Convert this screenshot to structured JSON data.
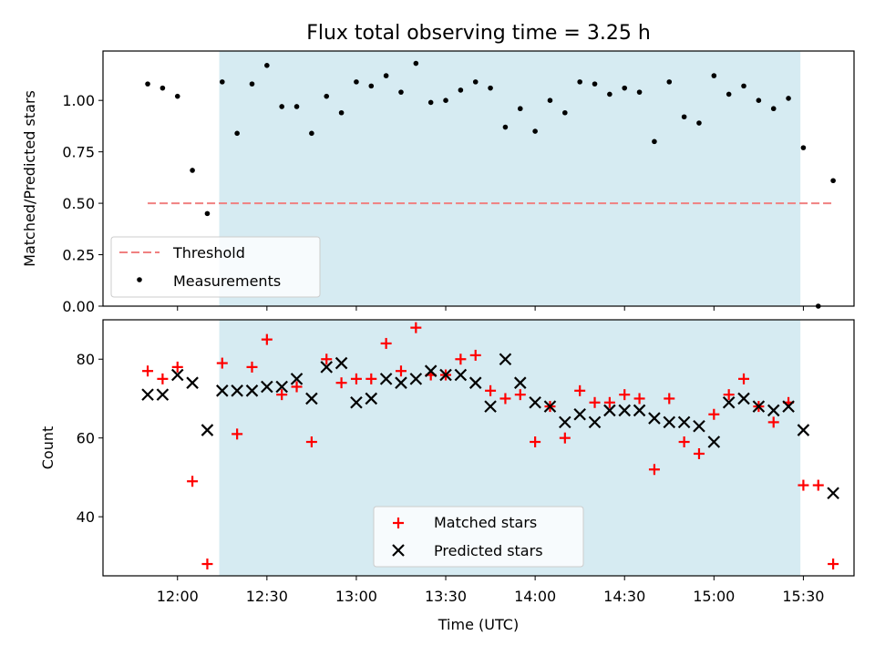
{
  "title": "Flux total observing time = 3.25 h",
  "colors": {
    "shade": "#add8e6",
    "threshold": "#f08080",
    "measurement": "#000000",
    "matched": "#ff0000",
    "predicted": "#000000"
  },
  "chart_data": [
    {
      "type": "scatter",
      "ylabel": "Matched/Predicted stars",
      "ylim": [
        0,
        1.24
      ],
      "yticks": [
        0.0,
        0.25,
        0.5,
        0.75,
        1.0
      ],
      "ytick_labels": [
        "0.00",
        "0.25",
        "0.50",
        "0.75",
        "1.00"
      ],
      "shaded_span": {
        "start": "12:14",
        "end": "15:29"
      },
      "legend_placement": "lower-left",
      "threshold": {
        "name": "Threshold",
        "value": 0.5,
        "x_range": [
          "11:50",
          "15:40"
        ]
      },
      "series": [
        {
          "name": "Measurements",
          "x": [
            "11:50",
            "11:55",
            "12:00",
            "12:05",
            "12:10",
            "12:15",
            "12:20",
            "12:25",
            "12:30",
            "12:35",
            "12:40",
            "12:45",
            "12:50",
            "12:55",
            "13:00",
            "13:05",
            "13:10",
            "13:15",
            "13:20",
            "13:25",
            "13:30",
            "13:35",
            "13:40",
            "13:45",
            "13:50",
            "13:55",
            "14:00",
            "14:05",
            "14:10",
            "14:15",
            "14:20",
            "14:25",
            "14:30",
            "14:35",
            "14:40",
            "14:45",
            "14:50",
            "14:55",
            "15:00",
            "15:05",
            "15:10",
            "15:15",
            "15:20",
            "15:25",
            "15:30",
            "15:35",
            "15:40"
          ],
          "y": [
            1.08,
            1.06,
            1.02,
            0.66,
            0.45,
            1.09,
            0.84,
            1.08,
            1.17,
            0.97,
            0.97,
            0.84,
            1.02,
            0.94,
            1.09,
            1.07,
            1.12,
            1.04,
            1.18,
            0.99,
            1.0,
            1.05,
            1.09,
            1.06,
            0.87,
            0.96,
            0.85,
            1.0,
            0.94,
            1.09,
            1.08,
            1.03,
            1.06,
            1.04,
            0.8,
            1.09,
            0.92,
            0.89,
            1.12,
            1.03,
            1.07,
            1.0,
            0.96,
            1.01,
            0.77,
            0.0,
            0.61
          ]
        }
      ]
    },
    {
      "type": "scatter",
      "xlabel": "Time (UTC)",
      "ylabel": "Count",
      "xlim": [
        "11:35",
        "15:47"
      ],
      "xticks": [
        "12:00",
        "12:30",
        "13:00",
        "13:30",
        "14:00",
        "14:30",
        "15:00",
        "15:30"
      ],
      "ylim": [
        25,
        90
      ],
      "yticks": [
        40,
        60,
        80
      ],
      "shaded_span": {
        "start": "12:14",
        "end": "15:29"
      },
      "legend_placement": "lower-center",
      "series": [
        {
          "name": "Matched stars",
          "marker": "+",
          "x": [
            "11:50",
            "11:55",
            "12:00",
            "12:05",
            "12:10",
            "12:15",
            "12:20",
            "12:25",
            "12:30",
            "12:35",
            "12:40",
            "12:45",
            "12:50",
            "12:55",
            "13:00",
            "13:05",
            "13:10",
            "13:15",
            "13:20",
            "13:25",
            "13:30",
            "13:35",
            "13:40",
            "13:45",
            "13:50",
            "13:55",
            "14:00",
            "14:05",
            "14:10",
            "14:15",
            "14:20",
            "14:25",
            "14:30",
            "14:35",
            "14:40",
            "14:45",
            "14:50",
            "14:55",
            "15:00",
            "15:05",
            "15:10",
            "15:15",
            "15:20",
            "15:25",
            "15:30",
            "15:35",
            "15:40"
          ],
          "y": [
            77,
            75,
            78,
            49,
            28,
            79,
            61,
            78,
            85,
            71,
            73,
            59,
            80,
            74,
            75,
            75,
            84,
            77,
            88,
            76,
            76,
            80,
            81,
            72,
            70,
            71,
            59,
            68,
            60,
            72,
            69,
            69,
            71,
            70,
            52,
            70,
            59,
            56,
            66,
            71,
            75,
            68,
            64,
            69,
            48,
            48,
            28
          ]
        },
        {
          "name": "Predicted stars",
          "marker": "x",
          "x": [
            "11:50",
            "11:55",
            "12:00",
            "12:05",
            "12:10",
            "12:15",
            "12:20",
            "12:25",
            "12:30",
            "12:35",
            "12:40",
            "12:45",
            "12:50",
            "12:55",
            "13:00",
            "13:05",
            "13:10",
            "13:15",
            "13:20",
            "13:25",
            "13:30",
            "13:35",
            "13:40",
            "13:45",
            "13:50",
            "13:55",
            "14:00",
            "14:05",
            "14:10",
            "14:15",
            "14:20",
            "14:25",
            "14:30",
            "14:35",
            "14:40",
            "14:45",
            "14:50",
            "14:55",
            "15:00",
            "15:05",
            "15:10",
            "15:15",
            "15:20",
            "15:25",
            "15:30",
            "15:40"
          ],
          "y": [
            71,
            71,
            76,
            74,
            62,
            72,
            72,
            72,
            73,
            73,
            75,
            70,
            78,
            79,
            69,
            70,
            75,
            74,
            75,
            77,
            76,
            76,
            74,
            68,
            80,
            74,
            69,
            68,
            64,
            66,
            64,
            67,
            67,
            67,
            65,
            64,
            64,
            63,
            59,
            69,
            70,
            68,
            67,
            68,
            62,
            46
          ]
        }
      ]
    }
  ]
}
